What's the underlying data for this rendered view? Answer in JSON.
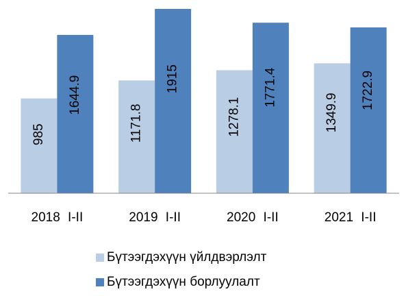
{
  "chart_data": {
    "type": "bar",
    "categories": [
      "2018 I-II",
      "2019 I-II",
      "2020 I-II",
      "2021 I-II"
    ],
    "series": [
      {
        "name": "Бүтээгдэхүүн үйлдвэрлэлт",
        "color": "#b9cde5",
        "values": [
          985,
          1171.8,
          1278.1,
          1349.9
        ]
      },
      {
        "name": "Бүтээгдэхүүн борлуулалт",
        "color": "#4f81bd",
        "values": [
          1644.9,
          1915,
          1771.4,
          1722.9
        ]
      }
    ]
  }
}
